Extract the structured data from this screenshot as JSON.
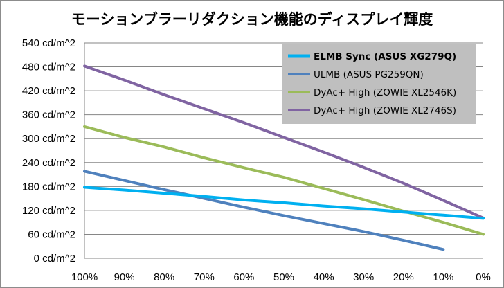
{
  "chart_data": {
    "type": "line",
    "title": "モーションブラーリダクション機能のディスプレイ輝度",
    "xlabel": "",
    "ylabel": "",
    "x": [
      100,
      90,
      80,
      70,
      60,
      50,
      40,
      30,
      20,
      10,
      0
    ],
    "x_tick_labels": [
      "100%",
      "90%",
      "80%",
      "70%",
      "60%",
      "50%",
      "40%",
      "30%",
      "20%",
      "10%",
      "0%"
    ],
    "xlim": [
      100,
      0
    ],
    "y_ticks": [
      0,
      60,
      120,
      180,
      240,
      300,
      360,
      420,
      480,
      540
    ],
    "y_tick_labels": [
      "0 cd/m^2",
      "60 cd/m^2",
      "120 cd/m^2",
      "180 cd/m^2",
      "240 cd/m^2",
      "300 cd/m^2",
      "360 cd/m^2",
      "420 cd/m^2",
      "480 cd/m^2",
      "540 cd/m^2"
    ],
    "ylim": [
      0,
      540
    ],
    "grid": "horizontal",
    "legend_placement": "top-right",
    "series": [
      {
        "name": "ELMB Sync (ASUS XG279Q)",
        "color": "#00b0f0",
        "bold": true,
        "values": [
          178,
          171,
          163,
          155,
          146,
          139,
          131,
          124,
          116,
          108,
          100
        ]
      },
      {
        "name": "ULMB (ASUS PG259QN)",
        "color": "#4f81bd",
        "bold": false,
        "values": [
          218,
          195,
          172,
          150,
          128,
          107,
          87,
          67,
          45,
          22,
          null
        ]
      },
      {
        "name": "DyAc+ High (ZOWIE XL2546K)",
        "color": "#9bbb59",
        "bold": false,
        "values": [
          330,
          303,
          279,
          252,
          227,
          203,
          175,
          147,
          118,
          90,
          60
        ]
      },
      {
        "name": "DyAc+ High (ZOWIE XL2746S)",
        "color": "#8064a2",
        "bold": false,
        "values": [
          482,
          447,
          410,
          375,
          340,
          303,
          266,
          228,
          188,
          145,
          101
        ]
      }
    ]
  }
}
